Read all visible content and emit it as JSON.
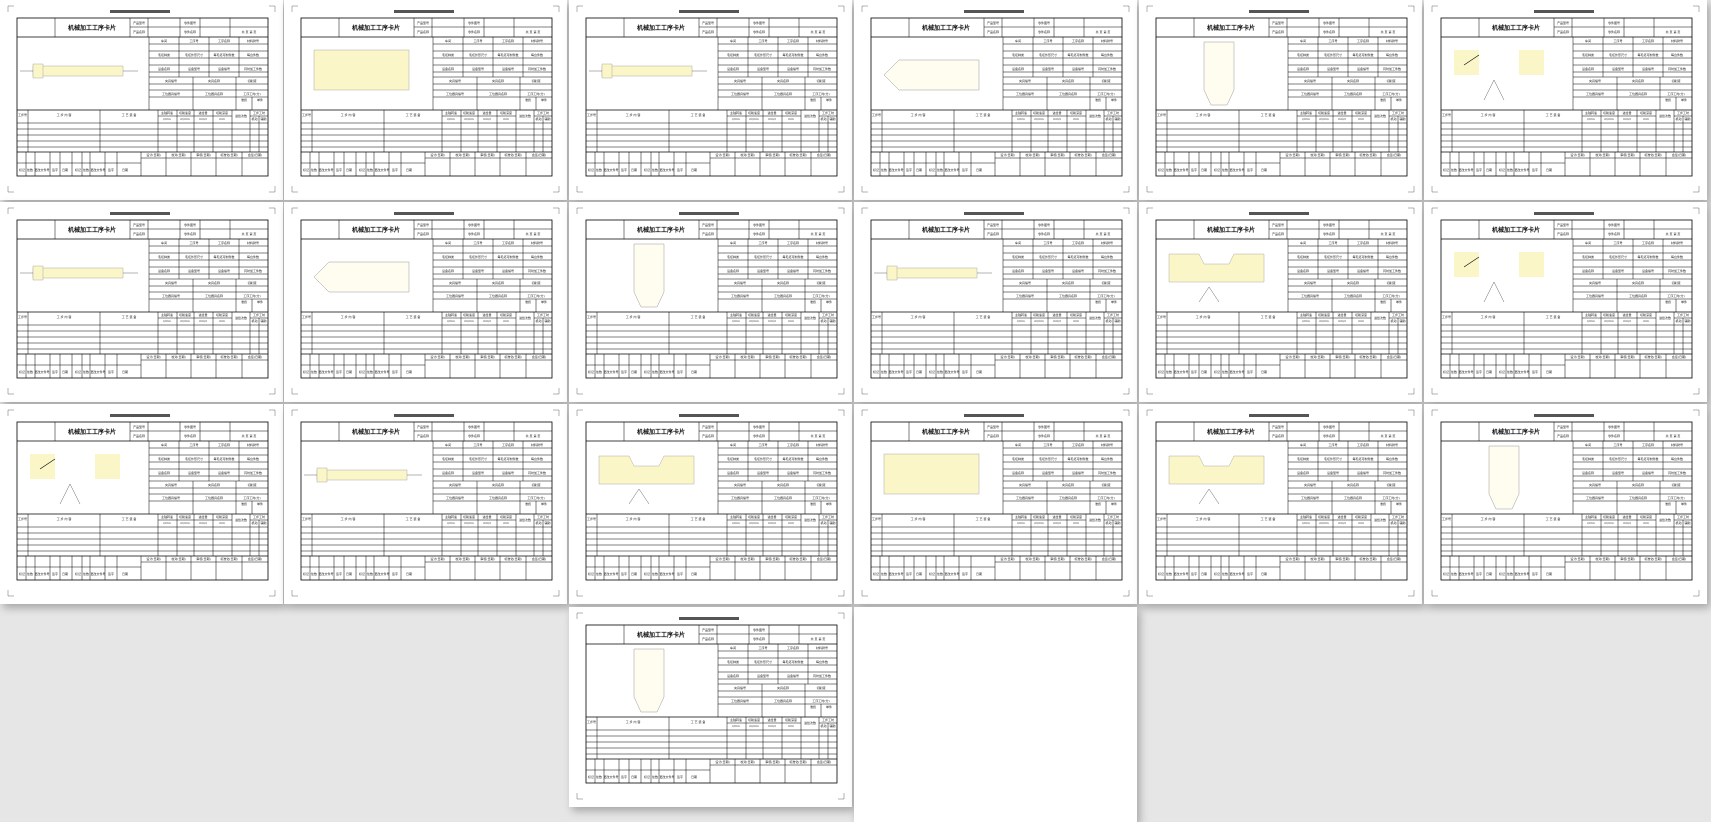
{
  "form": {
    "title": "机械加工工序卡片",
    "header": {
      "product_model": "产品型号",
      "part_drawing_no": "零件图号",
      "product_name": "产品名称",
      "part_name": "零件名称",
      "pages": "共 页 第 页"
    },
    "info": {
      "row1": [
        "车间",
        "工序号",
        "工序名称",
        "材料牌号"
      ],
      "row2": [
        "毛坯种类",
        "毛坯外形尺寸",
        "每毛坯可制件数",
        "每台件数"
      ],
      "row3": [
        "设备名称",
        "设备型号",
        "设备编号",
        "同时加工件数"
      ],
      "fixture": [
        "夹具编号",
        "夹具名称",
        "切削液"
      ],
      "station": [
        "工位器具编号",
        "工位器具名称",
        "工序工时(分)"
      ],
      "time": [
        "准终",
        "单件"
      ]
    },
    "steps_header": {
      "step_no": "工步号",
      "content": "工 步 内 容",
      "equipment": "工 艺 装 备",
      "spindle": "主轴转速",
      "speed": "切削速度",
      "feed": "进给量",
      "depth": "切削深度",
      "passes": "进给次数",
      "step_time": "工步工时",
      "machine": "机动",
      "aux": "辅助",
      "unit_spindle": "r/min",
      "unit_speed": "m/min",
      "unit_feed": "mm/r",
      "unit_depth": "mm"
    },
    "signoff": [
      "设计(日期)",
      "校对(日期)",
      "审核(日期)",
      "标准化(日期)",
      "会签(日期)"
    ],
    "revision": [
      "标记",
      "处数",
      "更改文件号",
      "签字",
      "日期",
      "标记",
      "处数",
      "更改文件号",
      "签字",
      "日期"
    ]
  },
  "pages": [
    {
      "sketch": "shaft"
    },
    {
      "sketch": "plate"
    },
    {
      "sketch": "shaft"
    },
    {
      "sketch": "bevel"
    },
    {
      "sketch": "vertical"
    },
    {
      "sketch": "angle"
    },
    {
      "sketch": "step"
    },
    {
      "sketch": "bevel"
    },
    {
      "sketch": "vertical"
    },
    {
      "sketch": "step"
    },
    {
      "sketch": "groove"
    },
    {
      "sketch": "angle"
    },
    {
      "sketch": "angle"
    },
    {
      "sketch": "step"
    },
    {
      "sketch": "groove"
    },
    {
      "sketch": "plate"
    },
    {
      "sketch": "groove"
    },
    {
      "sketch": "vertical"
    },
    {
      "sketch": "vertical"
    }
  ]
}
